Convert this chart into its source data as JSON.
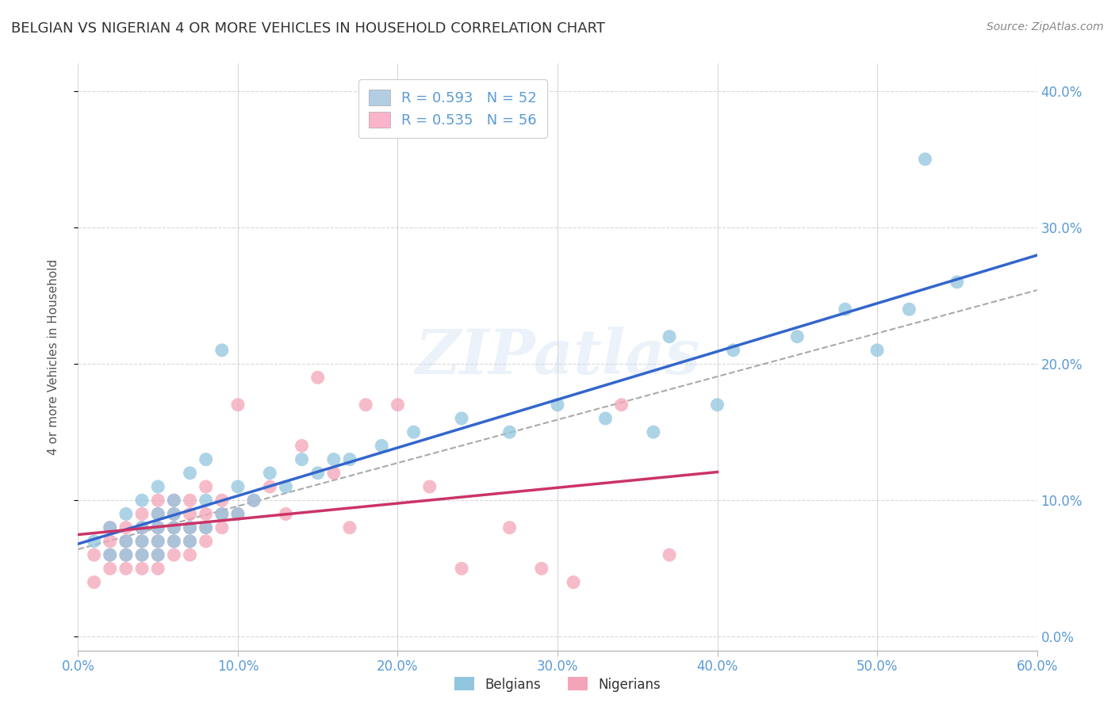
{
  "title": "BELGIAN VS NIGERIAN 4 OR MORE VEHICLES IN HOUSEHOLD CORRELATION CHART",
  "source": "Source: ZipAtlas.com",
  "ylabel": "4 or more Vehicles in Household",
  "xlim": [
    0.0,
    0.6
  ],
  "ylim": [
    -0.01,
    0.42
  ],
  "xticks": [
    0.0,
    0.1,
    0.2,
    0.3,
    0.4,
    0.5,
    0.6
  ],
  "xtick_labels": [
    "0.0%",
    "10.0%",
    "20.0%",
    "30.0%",
    "40.0%",
    "50.0%",
    "60.0%"
  ],
  "yticks_right": [
    0.0,
    0.1,
    0.2,
    0.3,
    0.4
  ],
  "ytick_labels_right": [
    "0.0%",
    "10.0%",
    "20.0%",
    "30.0%",
    "40.0%"
  ],
  "belgian_R": 0.593,
  "belgian_N": 52,
  "nigerian_R": 0.535,
  "nigerian_N": 56,
  "belgian_color": "#92c5de",
  "nigerian_color": "#f4a4b8",
  "watermark": "ZIPatlas",
  "belgian_scatter_x": [
    0.01,
    0.02,
    0.02,
    0.03,
    0.03,
    0.03,
    0.04,
    0.04,
    0.04,
    0.04,
    0.05,
    0.05,
    0.05,
    0.05,
    0.05,
    0.06,
    0.06,
    0.06,
    0.06,
    0.07,
    0.07,
    0.07,
    0.08,
    0.08,
    0.08,
    0.09,
    0.09,
    0.1,
    0.1,
    0.11,
    0.12,
    0.13,
    0.14,
    0.15,
    0.16,
    0.17,
    0.19,
    0.21,
    0.24,
    0.27,
    0.3,
    0.33,
    0.36,
    0.37,
    0.4,
    0.41,
    0.45,
    0.48,
    0.5,
    0.52,
    0.55,
    0.53
  ],
  "belgian_scatter_y": [
    0.07,
    0.06,
    0.08,
    0.06,
    0.07,
    0.09,
    0.06,
    0.07,
    0.08,
    0.1,
    0.06,
    0.07,
    0.08,
    0.09,
    0.11,
    0.07,
    0.08,
    0.09,
    0.1,
    0.07,
    0.08,
    0.12,
    0.08,
    0.1,
    0.13,
    0.09,
    0.21,
    0.09,
    0.11,
    0.1,
    0.12,
    0.11,
    0.13,
    0.12,
    0.13,
    0.13,
    0.14,
    0.15,
    0.16,
    0.15,
    0.17,
    0.16,
    0.15,
    0.22,
    0.17,
    0.21,
    0.22,
    0.24,
    0.21,
    0.24,
    0.26,
    0.35
  ],
  "nigerian_scatter_x": [
    0.01,
    0.01,
    0.02,
    0.02,
    0.02,
    0.02,
    0.03,
    0.03,
    0.03,
    0.03,
    0.04,
    0.04,
    0.04,
    0.04,
    0.04,
    0.05,
    0.05,
    0.05,
    0.05,
    0.05,
    0.05,
    0.06,
    0.06,
    0.06,
    0.06,
    0.06,
    0.07,
    0.07,
    0.07,
    0.07,
    0.07,
    0.08,
    0.08,
    0.08,
    0.08,
    0.09,
    0.09,
    0.09,
    0.1,
    0.1,
    0.11,
    0.12,
    0.13,
    0.14,
    0.15,
    0.16,
    0.17,
    0.18,
    0.2,
    0.22,
    0.24,
    0.27,
    0.29,
    0.31,
    0.34,
    0.37
  ],
  "nigerian_scatter_y": [
    0.04,
    0.06,
    0.05,
    0.06,
    0.07,
    0.08,
    0.05,
    0.06,
    0.07,
    0.08,
    0.05,
    0.06,
    0.07,
    0.08,
    0.09,
    0.05,
    0.06,
    0.07,
    0.08,
    0.09,
    0.1,
    0.06,
    0.07,
    0.08,
    0.09,
    0.1,
    0.06,
    0.07,
    0.08,
    0.09,
    0.1,
    0.07,
    0.08,
    0.09,
    0.11,
    0.08,
    0.09,
    0.1,
    0.09,
    0.17,
    0.1,
    0.11,
    0.09,
    0.14,
    0.19,
    0.12,
    0.08,
    0.17,
    0.17,
    0.11,
    0.05,
    0.08,
    0.05,
    0.04,
    0.17,
    0.06
  ],
  "bg_color": "#ffffff",
  "grid_color": "#d8d8d8",
  "title_color": "#333333",
  "axis_label_color": "#555555",
  "tick_label_color": "#5b9bd5",
  "legend_blue_fill": "#b3cde3",
  "legend_pink_fill": "#fbb4c9",
  "legend_R_color": "#5b9bd5",
  "line_blue": "#3366cc",
  "line_pink": "#cc3366",
  "line_dash": "#aaaaaa"
}
